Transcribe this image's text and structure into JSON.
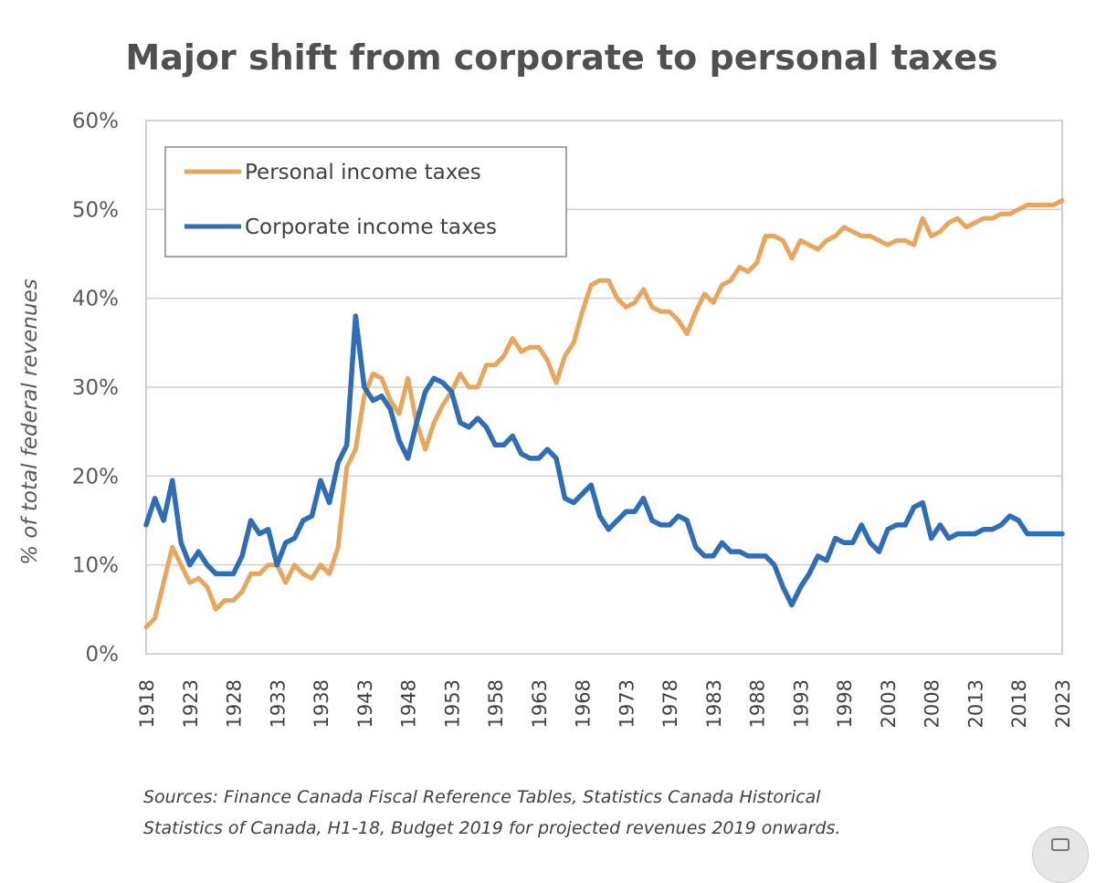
{
  "chart_data": {
    "type": "line",
    "title": "Major shift from corporate to personal taxes",
    "ylabel": "% of total federal revenues",
    "xlabel": "",
    "ylim": [
      0,
      60
    ],
    "y_ticks": [
      "0%",
      "10%",
      "20%",
      "30%",
      "40%",
      "50%",
      "60%"
    ],
    "x_ticks": [
      "1918",
      "1923",
      "1928",
      "1933",
      "1938",
      "1943",
      "1948",
      "1953",
      "1958",
      "1963",
      "1968",
      "1973",
      "1978",
      "1983",
      "1988",
      "1993",
      "1998",
      "2003",
      "2008",
      "2013",
      "2018",
      "2023"
    ],
    "grid": "horizontal",
    "legend_position": "top-left",
    "x": [
      1918,
      1919,
      1920,
      1921,
      1922,
      1923,
      1924,
      1925,
      1926,
      1927,
      1928,
      1929,
      1930,
      1931,
      1932,
      1933,
      1934,
      1935,
      1936,
      1937,
      1938,
      1939,
      1940,
      1941,
      1942,
      1943,
      1944,
      1945,
      1946,
      1947,
      1948,
      1949,
      1950,
      1951,
      1952,
      1953,
      1954,
      1955,
      1956,
      1957,
      1958,
      1959,
      1960,
      1961,
      1962,
      1963,
      1964,
      1965,
      1966,
      1967,
      1968,
      1969,
      1970,
      1971,
      1972,
      1973,
      1974,
      1975,
      1976,
      1977,
      1978,
      1979,
      1980,
      1981,
      1982,
      1983,
      1984,
      1985,
      1986,
      1987,
      1988,
      1989,
      1990,
      1991,
      1992,
      1993,
      1994,
      1995,
      1996,
      1997,
      1998,
      1999,
      2000,
      2001,
      2002,
      2003,
      2004,
      2005,
      2006,
      2007,
      2008,
      2009,
      2010,
      2011,
      2012,
      2013,
      2014,
      2015,
      2016,
      2017,
      2018,
      2019,
      2020,
      2021,
      2022,
      2023
    ],
    "series": [
      {
        "name": "Personal income taxes",
        "color": "#E8A65C",
        "values": [
          3.0,
          4.0,
          8.0,
          12.0,
          10.0,
          8.0,
          8.5,
          7.5,
          5.0,
          6.0,
          6.0,
          7.0,
          9.0,
          9.0,
          10.0,
          10.0,
          8.0,
          10.0,
          9.0,
          8.5,
          10.0,
          9.0,
          12.0,
          21.0,
          23.0,
          29.0,
          31.5,
          31.0,
          28.5,
          27.0,
          31.0,
          26.0,
          23.0,
          26.0,
          28.0,
          29.5,
          31.5,
          30.0,
          30.0,
          32.5,
          32.5,
          33.5,
          35.5,
          34.0,
          34.5,
          34.5,
          33.0,
          30.5,
          33.5,
          35.0,
          38.5,
          41.5,
          42.0,
          42.0,
          40.0,
          39.0,
          39.5,
          41.0,
          39.0,
          38.5,
          38.5,
          37.5,
          36.0,
          38.5,
          40.5,
          39.5,
          41.5,
          42.0,
          43.5,
          43.0,
          44.0,
          47.0,
          47.0,
          46.5,
          44.5,
          46.5,
          46.0,
          45.5,
          46.5,
          47.0,
          48.0,
          47.5,
          47.0,
          47.0,
          46.5,
          46.0,
          46.5,
          46.5,
          46.0,
          49.0,
          47.0,
          47.5,
          48.5,
          49.0,
          48.0,
          48.5,
          49.0,
          49.0,
          49.5,
          49.5,
          50.0,
          50.5,
          50.5,
          50.5,
          50.5,
          51.0
        ]
      },
      {
        "name": "Corporate income taxes",
        "color": "#2E6EB7",
        "values": [
          14.5,
          17.5,
          15.0,
          19.5,
          12.5,
          10.0,
          11.5,
          10.0,
          9.0,
          9.0,
          9.0,
          11.0,
          15.0,
          13.5,
          14.0,
          10.0,
          12.5,
          13.0,
          15.0,
          15.5,
          19.5,
          17.0,
          21.5,
          23.5,
          38.0,
          30.0,
          28.5,
          29.0,
          27.5,
          24.0,
          22.0,
          26.0,
          29.5,
          31.0,
          30.5,
          29.5,
          26.0,
          25.5,
          26.5,
          25.5,
          23.5,
          23.5,
          24.5,
          22.5,
          22.0,
          22.0,
          23.0,
          22.0,
          17.5,
          17.0,
          18.0,
          19.0,
          15.5,
          14.0,
          15.0,
          16.0,
          16.0,
          17.5,
          15.0,
          14.5,
          14.5,
          15.5,
          15.0,
          12.0,
          11.0,
          11.0,
          12.5,
          11.5,
          11.5,
          11.0,
          11.0,
          11.0,
          10.0,
          7.5,
          5.5,
          7.5,
          9.0,
          11.0,
          10.5,
          13.0,
          12.5,
          12.5,
          14.5,
          12.5,
          11.5,
          14.0,
          14.5,
          14.5,
          16.5,
          17.0,
          13.0,
          14.5,
          13.0,
          13.5,
          13.5,
          13.5,
          14.0,
          14.0,
          14.5,
          15.5,
          15.0,
          13.5,
          13.5,
          13.5,
          13.5,
          13.5
        ]
      }
    ]
  },
  "source_note": {
    "line1": "Sources: Finance Canada Fiscal Reference Tables, Statistics Canada Historical",
    "line2": "Statistics of Canada, H1-18, Budget 2019 for projected revenues 2019 onwards."
  }
}
